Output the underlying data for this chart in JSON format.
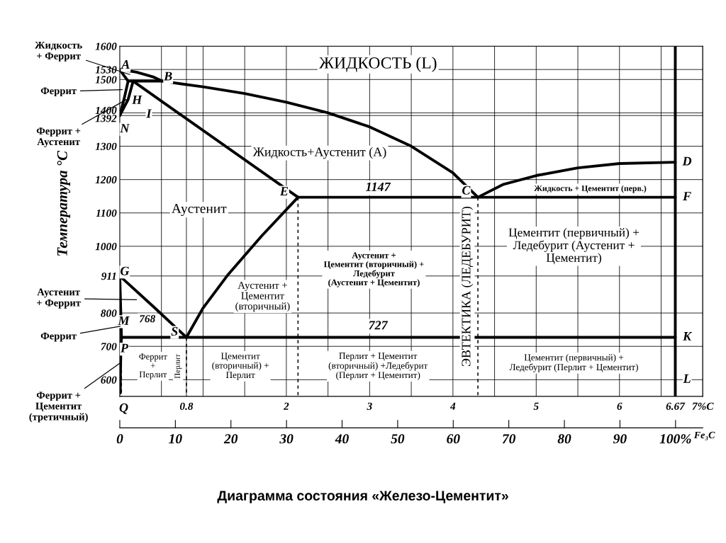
{
  "chart_data": {
    "type": "line",
    "title": "Диаграмма состояния «Железо-Цементит»",
    "ylabel": "Температура °C",
    "x2label": "Fe₃C",
    "xlim": [
      0,
      7.0
    ],
    "ylim": [
      550,
      1600
    ],
    "x2lim": [
      0,
      104.9
    ],
    "xticks": [
      {
        "value": 0.5,
        "label": null
      },
      {
        "value": 0.8,
        "label": "0.8"
      },
      {
        "value": 1,
        "label": null
      },
      {
        "value": 1.5,
        "label": null
      },
      2,
      {
        "value": 2.5,
        "label": null
      },
      3,
      {
        "value": 3.5,
        "label": null
      },
      4,
      {
        "value": 4.5,
        "label": null
      },
      5,
      {
        "value": 5.5,
        "label": null
      },
      6,
      {
        "value": 6.5,
        "label": null
      },
      6.67,
      {
        "value": 7,
        "label": "7%C"
      }
    ],
    "yticks": [
      600,
      700,
      800,
      911,
      1000,
      1100,
      1200,
      1300,
      1392,
      1400,
      1500,
      1530,
      1600
    ],
    "x2ticks": [
      0,
      10,
      20,
      30,
      40,
      50,
      60,
      70,
      80,
      90,
      {
        "value": 100,
        "label": "100%"
      }
    ],
    "grid": true,
    "series": [
      {
        "color": "#000000",
        "x": [
          0,
          0.2,
          0.4,
          0.51,
          1.0,
          1.5,
          2.0,
          2.5,
          3.0,
          3.5,
          4.0,
          4.3
        ],
        "values": [
          1530,
          1522,
          1508,
          1495,
          1478,
          1458,
          1432,
          1400,
          1358,
          1300,
          1220,
          1147
        ]
      },
      {
        "color": "#000000",
        "x": [
          0,
          0.05,
          0.1,
          0.05,
          0
        ],
        "values": [
          1530,
          1512,
          1495,
          1440,
          1392
        ]
      },
      {
        "color": "#000000",
        "x": [
          0.1,
          0.51
        ],
        "values": [
          1495,
          1495
        ]
      },
      {
        "color": "#000000",
        "x": [
          4.3,
          4.6,
          5.0,
          5.5,
          6.0,
          6.67
        ],
        "values": [
          1147,
          1185,
          1212,
          1235,
          1248,
          1252
        ]
      },
      {
        "color": "#000000",
        "x": [
          0.16,
          2.14
        ],
        "values": [
          1495,
          1147
        ]
      },
      {
        "color": "#000000",
        "x": [
          2.14,
          6.67
        ],
        "values": [
          1147,
          1147
        ]
      },
      {
        "color": "#000000",
        "x": [
          0.16,
          0.1,
          0
        ],
        "values": [
          1495,
          1440,
          1392
        ]
      },
      {
        "color": "#000000",
        "x": [
          0,
          0.4,
          0.8
        ],
        "values": [
          911,
          820,
          727
        ]
      },
      {
        "color": "#000000",
        "x": [
          0,
          0.02,
          0.012,
          0.008,
          0.006
        ],
        "values": [
          911,
          727,
          680,
          620,
          560
        ]
      },
      {
        "color": "#000000",
        "x": [
          0.02,
          6.67
        ],
        "values": [
          727,
          727
        ]
      },
      {
        "color": "#000000",
        "x": [
          0.8,
          1.0,
          1.3,
          1.7,
          2.14
        ],
        "values": [
          727,
          815,
          915,
          1030,
          1147
        ]
      },
      {
        "color": "#000000",
        "x": [
          6.67,
          6.67
        ],
        "values": [
          550,
          1600
        ]
      },
      {
        "color": "#000000",
        "line_style": "dashed",
        "x": [
          0.02,
          0.02
        ],
        "values": [
          727,
          550
        ]
      },
      {
        "color": "#000000",
        "line_style": "dashed",
        "x": [
          0.8,
          0.8
        ],
        "values": [
          727,
          550
        ]
      },
      {
        "color": "#000000",
        "line_style": "dashed",
        "x": [
          2.14,
          2.14
        ],
        "values": [
          1147,
          550
        ]
      },
      {
        "color": "#000000",
        "line_style": "dashed",
        "x": [
          4.3,
          4.3
        ],
        "values": [
          1147,
          550
        ]
      }
    ],
    "annotations": [
      {
        "text": "A",
        "x": 0,
        "y": 1530
      },
      {
        "text": "B",
        "x": 0.51,
        "y": 1495
      },
      {
        "text": "H",
        "x": 0.1,
        "y": 1495
      },
      {
        "text": "I",
        "x": 0.16,
        "y": 1495
      },
      {
        "text": "N",
        "x": 0,
        "y": 1392
      },
      {
        "text": "E",
        "x": 2.14,
        "y": 1147
      },
      {
        "text": "C",
        "x": 4.3,
        "y": 1147
      },
      {
        "text": "D",
        "x": 6.67,
        "y": 1252
      },
      {
        "text": "F",
        "x": 6.67,
        "y": 1147
      },
      {
        "text": "G",
        "x": 0,
        "y": 911
      },
      {
        "text": "M",
        "x": 0,
        "y": 768
      },
      {
        "text": "P",
        "x": 0.02,
        "y": 727
      },
      {
        "text": "S",
        "x": 0.8,
        "y": 727
      },
      {
        "text": "K",
        "x": 6.67,
        "y": 727
      },
      {
        "text": "L",
        "x": 6.67,
        "y": 600
      },
      {
        "text": "Q",
        "x": 0,
        "y": 560
      },
      "ЖИДКОСТЬ (L)",
      "Жидкость+Аустенит (A)",
      {
        "text": "1147",
        "x": 3.1,
        "y": 1175
      },
      "Жидкость + Цементит (перв.)",
      "Аустенит",
      "Аустенит +\nЦементит (вторичный) +\nЛедебурит\n(Аустенит + Цементит)",
      "ЭВТЕКТИКА (ЛЕДЕБУРИТ)",
      "Цементит (первичный) +\nЛедебурит (Аустенит +\nЦементит)",
      "Аустенит +\nЦементит\n(вторичный)",
      {
        "text": "727",
        "x": 3.1,
        "y": 760
      },
      {
        "text": "768",
        "x": 0.33,
        "y": 780
      },
      "Феррит\n+\nПерлит",
      {
        "text": "Перлит",
        "x": 0.7,
        "y": 640
      },
      "Цементит\n(вторичный) +\nПерлит",
      "Перлит + Цементит\n(вторичный) +Ледебурит\n(Перлит + Цементит)",
      "Цементит (первичный) +\nЛедебурит (Перлит + Цементит)",
      {
        "text": "Жидкость\n+ Феррит",
        "x": 0.12,
        "y": 1515
      },
      "Феррит",
      {
        "text": "Феррит +\nАустенит",
        "x": 0.08,
        "y": 1440
      },
      "Аустенит\n+ Феррит",
      {
        "text": "Феррит",
        "x": 0.005,
        "y": 760
      },
      {
        "text": "Феррит +\nЦементит\n(третичный)",
        "x": 0.004,
        "y": 650
      }
    ]
  }
}
